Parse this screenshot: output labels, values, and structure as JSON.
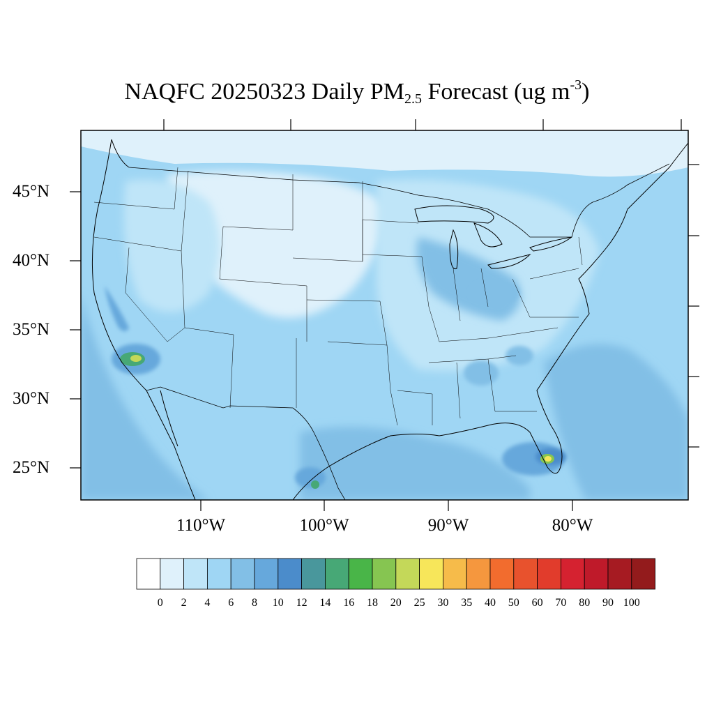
{
  "title": {
    "prefix": "NAQFC 20250323 Daily PM",
    "subscript": "2.5",
    "middle": " Forecast (ug m",
    "superscript": "-3",
    "suffix": ")"
  },
  "map": {
    "region": "Contiguous United States",
    "variable": "Daily PM2.5",
    "units": "ug m-3",
    "forecast_date": "20250323",
    "lat_labels": [
      "45°N",
      "40°N",
      "35°N",
      "30°N",
      "25°N"
    ],
    "lon_labels": [
      "110°W",
      "100°W",
      "90°W",
      "80°W"
    ],
    "hotspots": [
      {
        "name": "southern-california",
        "value_range": "16-25"
      },
      {
        "name": "south-florida",
        "value_range": "16-30"
      },
      {
        "name": "south-texas",
        "value_range": "16-18"
      },
      {
        "name": "west-virginia-area",
        "value_range": "10-12"
      },
      {
        "name": "georgia-south-carolina",
        "value_range": "10-14"
      }
    ]
  },
  "colorbar": {
    "levels": [
      "0",
      "2",
      "4",
      "6",
      "8",
      "10",
      "12",
      "14",
      "16",
      "18",
      "20",
      "25",
      "30",
      "35",
      "40",
      "50",
      "60",
      "70",
      "80",
      "90",
      "100"
    ],
    "colors": [
      "#ffffff",
      "#dff1fb",
      "#bfe5f8",
      "#9fd6f4",
      "#82bfe6",
      "#66a8dc",
      "#4b8ccb",
      "#49979c",
      "#47a876",
      "#49b548",
      "#86c551",
      "#c4d859",
      "#f7e65a",
      "#f6bb4a",
      "#f5973e",
      "#f26c2e",
      "#e8522d",
      "#e13c2c",
      "#d52230",
      "#bf1a2a",
      "#a61b22",
      "#931b1c"
    ]
  }
}
